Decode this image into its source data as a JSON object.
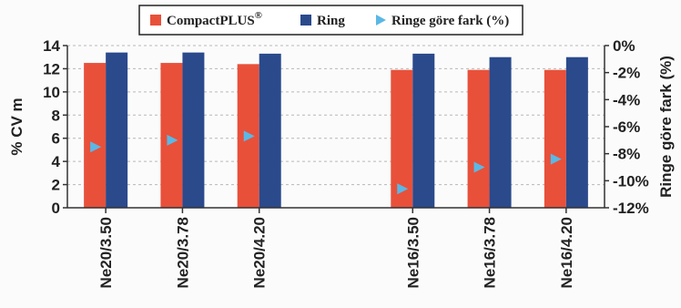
{
  "chart_data": {
    "type": "bar",
    "categories": [
      "Ne20/3.50",
      "Ne20/3.78",
      "Ne20/4.20",
      "",
      "Ne16/3.50",
      "Ne16/3.78",
      "Ne16/4.20"
    ],
    "series": [
      {
        "name": "CompactPLUS",
        "name_superscript": "®",
        "axis": "left",
        "type": "bar",
        "color": "#e8503a",
        "values": [
          12.5,
          12.5,
          12.4,
          null,
          11.9,
          11.9,
          11.9
        ]
      },
      {
        "name": "Ring",
        "axis": "left",
        "type": "bar",
        "color": "#2a4a8c",
        "values": [
          13.4,
          13.4,
          13.3,
          null,
          13.3,
          13.0,
          13.0
        ]
      },
      {
        "name": "Ringe göre fark (%)",
        "axis": "right",
        "type": "scatter",
        "color": "#5ab8e6",
        "marker": "triangle-right",
        "values": [
          -7.5,
          -7.0,
          -6.7,
          null,
          -10.6,
          -9.0,
          -8.4
        ]
      }
    ],
    "ylabel": "% CV m",
    "y2label": "Ringe göre fark (%)",
    "ylim": [
      0,
      14
    ],
    "yticks": [
      0,
      2,
      4,
      6,
      8,
      10,
      12,
      14
    ],
    "y2lim": [
      -12,
      0
    ],
    "y2ticks": [
      0,
      -2,
      -4,
      -6,
      -8,
      -10,
      -12
    ],
    "y2tick_labels": [
      "0%",
      "-2%",
      "-4%",
      "-6%",
      "-8%",
      "-10%",
      "-12%"
    ],
    "grid": true,
    "legend_position": "top-center"
  }
}
